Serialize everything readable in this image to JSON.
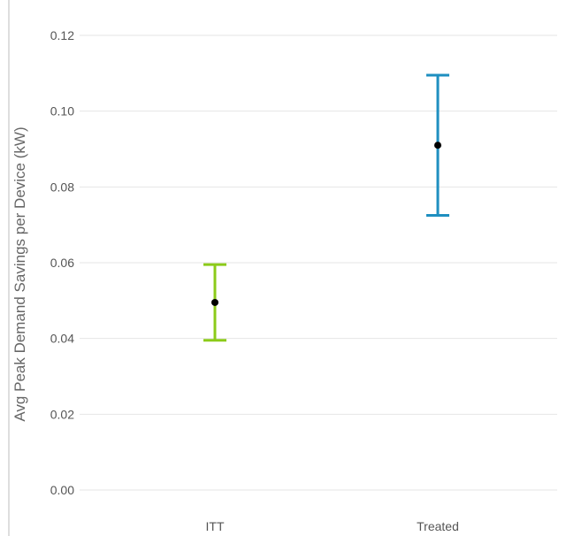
{
  "chart_data": {
    "type": "errorbar",
    "title": "",
    "xlabel": "",
    "ylabel": "Avg Peak Demand Savings per Device (kW)",
    "categories": [
      "ITT",
      "Treated"
    ],
    "points": [
      {
        "category": "ITT",
        "value": 0.0495,
        "lower": 0.0395,
        "upper": 0.0595,
        "color": "#8ccb1a"
      },
      {
        "category": "Treated",
        "value": 0.091,
        "lower": 0.0725,
        "upper": 0.1095,
        "color": "#1e8fc0"
      }
    ],
    "ylim": [
      0,
      0.12
    ],
    "yticks": [
      "0.00",
      "0.02",
      "0.04",
      "0.06",
      "0.08",
      "0.10",
      "0.12"
    ],
    "grid": true,
    "point_color": "#000000"
  }
}
